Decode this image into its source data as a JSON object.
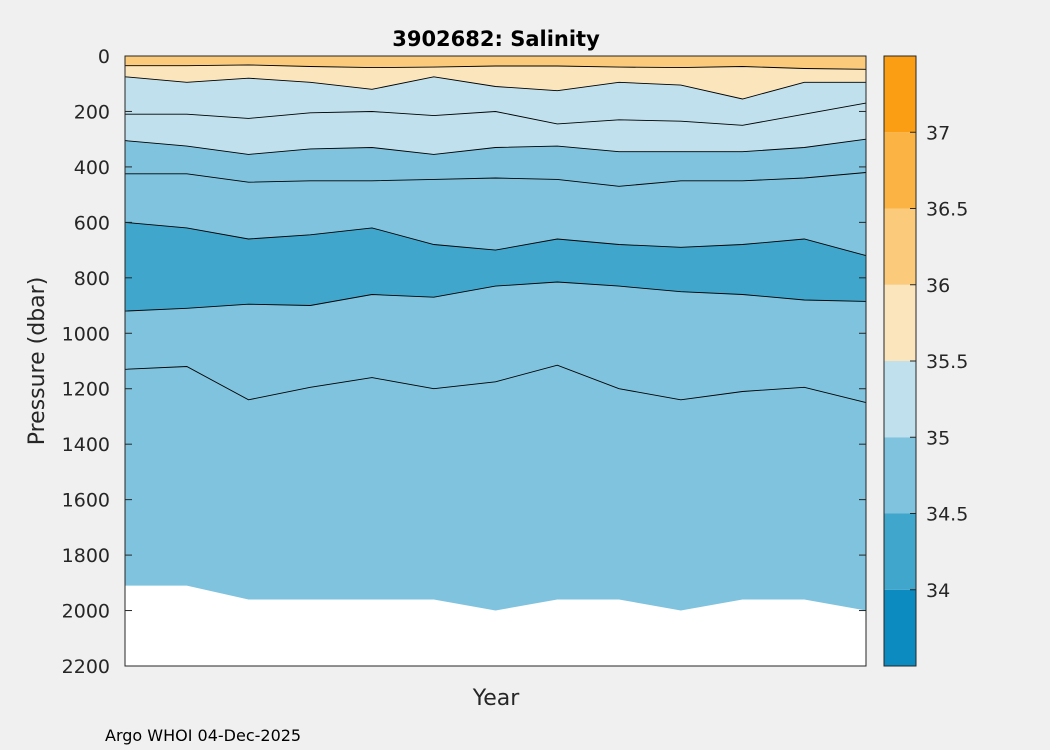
{
  "chart_data": {
    "type": "contour",
    "title": "3902682:  Salinity",
    "xlabel": "Year",
    "ylabel": "Pressure (dbar)",
    "y_reversed": true,
    "ylim": [
      0,
      2200
    ],
    "yticks": [
      0,
      200,
      400,
      600,
      800,
      1000,
      1200,
      1400,
      1600,
      1800,
      2000,
      2200
    ],
    "x_profile_count": 13,
    "colorbar": {
      "range": [
        33.5,
        37.5
      ],
      "ticks": [
        34,
        34.5,
        35,
        35.5,
        36,
        36.5,
        37
      ],
      "tick_labels": [
        "34",
        "34.5",
        "35",
        "35.5",
        "36",
        "36.5",
        "37"
      ],
      "bands": [
        {
          "from": 33.5,
          "to": 34.0,
          "color": "#0b8bbf"
        },
        {
          "from": 34.0,
          "to": 34.5,
          "color": "#41a6cc"
        },
        {
          "from": 34.5,
          "to": 35.0,
          "color": "#7fc3de"
        },
        {
          "from": 35.0,
          "to": 35.5,
          "color": "#bfe0ec"
        },
        {
          "from": 35.5,
          "to": 36.0,
          "color": "#fbe5bd"
        },
        {
          "from": 36.0,
          "to": 36.5,
          "color": "#fbcb7b"
        },
        {
          "from": 36.5,
          "to": 37.0,
          "color": "#fbb444"
        },
        {
          "from": 37.0,
          "to": 37.5,
          "color": "#fb9e14"
        }
      ]
    },
    "max_depth_by_profile": [
      1910,
      1910,
      1960,
      1960,
      1960,
      1960,
      2000,
      1960,
      1960,
      2000,
      1960,
      1960,
      2000
    ],
    "contours": [
      {
        "level": 36.0,
        "depth": [
          35,
          35,
          32,
          38,
          42,
          40,
          36,
          36,
          40,
          42,
          38,
          45,
          48
        ]
      },
      {
        "level": 35.5,
        "depth": [
          75,
          95,
          80,
          95,
          120,
          75,
          110,
          125,
          95,
          105,
          155,
          95,
          95
        ]
      },
      {
        "level": 35.2,
        "depth": [
          210,
          210,
          225,
          205,
          200,
          215,
          200,
          245,
          230,
          235,
          250,
          210,
          170
        ]
      },
      {
        "level": 35.0,
        "depth": [
          305,
          325,
          355,
          335,
          330,
          355,
          330,
          325,
          345,
          345,
          345,
          330,
          300
        ]
      },
      {
        "level": 34.8,
        "depth": [
          425,
          425,
          455,
          450,
          450,
          445,
          440,
          445,
          470,
          450,
          450,
          440,
          420
        ]
      },
      {
        "level": 34.5,
        "depth": [
          600,
          620,
          660,
          645,
          620,
          680,
          700,
          660,
          680,
          690,
          680,
          660,
          720
        ]
      },
      {
        "level": 34.5,
        "depth": [
          920,
          910,
          895,
          900,
          860,
          870,
          830,
          815,
          830,
          850,
          860,
          880,
          885
        ]
      },
      {
        "level": 34.8,
        "depth": [
          1130,
          1120,
          1240,
          1195,
          1160,
          1200,
          1175,
          1115,
          1200,
          1240,
          1210,
          1195,
          1250
        ]
      }
    ],
    "footer": "Argo WHOI 04-Dec-2025"
  }
}
